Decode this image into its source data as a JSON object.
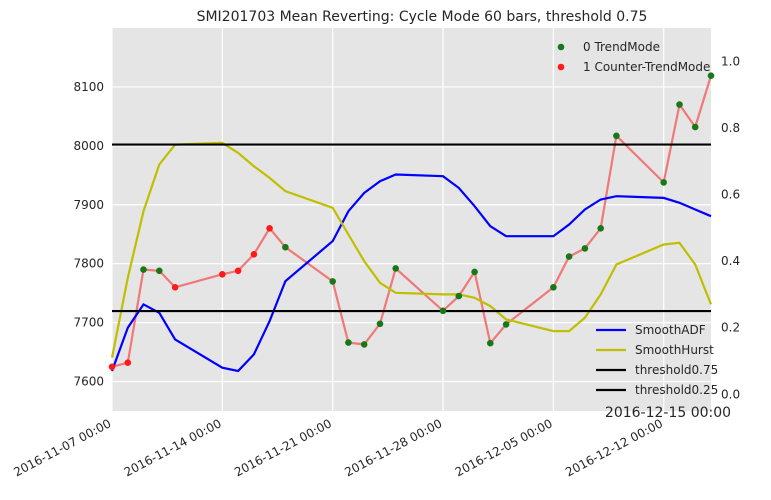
{
  "chart_data": {
    "type": "line",
    "title": "SMI201703 Mean Reverting: Cycle Mode 60 bars, threshold 0.75",
    "corner_label": "2016-12-15 00:00",
    "x": [
      "2016-11-07",
      "2016-11-08",
      "2016-11-09",
      "2016-11-10",
      "2016-11-11",
      "2016-11-14",
      "2016-11-15",
      "2016-11-16",
      "2016-11-17",
      "2016-11-18",
      "2016-11-21",
      "2016-11-22",
      "2016-11-23",
      "2016-11-24",
      "2016-11-25",
      "2016-11-28",
      "2016-11-29",
      "2016-11-30",
      "2016-12-01",
      "2016-12-02",
      "2016-12-05",
      "2016-12-06",
      "2016-12-07",
      "2016-12-08",
      "2016-12-09",
      "2016-12-12",
      "2016-12-13",
      "2016-12-14",
      "2016-12-15"
    ],
    "x_ticks": [
      "2016-11-07 00:00",
      "2016-11-14 00:00",
      "2016-11-21 00:00",
      "2016-11-28 00:00",
      "2016-12-05 00:00",
      "2016-12-12 00:00"
    ],
    "y_left": {
      "ylim": [
        7550,
        8200
      ],
      "ticks": [
        7600,
        7700,
        7800,
        7900,
        8000,
        8100
      ]
    },
    "y_right": {
      "ylim": [
        -0.05,
        1.1
      ],
      "ticks": [
        "0.0",
        "0.2",
        "0.4",
        "0.6",
        "0.8",
        "1.0"
      ]
    },
    "price": {
      "color": "#f07878",
      "values": [
        7625,
        7632,
        7790,
        7788,
        7760,
        7782,
        7788,
        7816,
        7860,
        7828,
        7770,
        7666,
        7663,
        7698,
        7792,
        7720,
        7745,
        7786,
        7665,
        7697,
        7760,
        7812,
        7826,
        7860,
        8017,
        7938,
        8070,
        8032,
        8119
      ]
    },
    "points": [
      {
        "name": "0 TrendMode",
        "color": "#187818",
        "indices": [
          2,
          3,
          9,
          10,
          11,
          12,
          13,
          14,
          15,
          16,
          17,
          18,
          19,
          20,
          21,
          22,
          23,
          24,
          25,
          26,
          27,
          28
        ]
      },
      {
        "name": "1 Counter-TrendMode",
        "color": "#ff1a1a",
        "indices": [
          0,
          1,
          4,
          5,
          6,
          7,
          8
        ]
      }
    ],
    "series": [
      {
        "name": "SmoothADF",
        "color": "#0000ff",
        "axis": "right",
        "values": [
          0.07,
          0.2,
          0.27,
          0.245,
          0.165,
          0.08,
          0.07,
          0.12,
          0.22,
          0.34,
          0.46,
          0.55,
          0.605,
          0.64,
          0.66,
          0.655,
          0.62,
          0.565,
          0.505,
          0.475,
          0.475,
          0.51,
          0.555,
          0.585,
          0.595,
          0.59,
          0.575,
          0.555,
          0.535
        ]
      },
      {
        "name": "SmoothHurst",
        "color": "#bfbf00",
        "axis": "right",
        "values": [
          0.11,
          0.35,
          0.55,
          0.69,
          0.75,
          0.755,
          0.725,
          0.685,
          0.65,
          0.61,
          0.56,
          0.48,
          0.4,
          0.335,
          0.305,
          0.3,
          0.3,
          0.29,
          0.265,
          0.225,
          0.19,
          0.19,
          0.23,
          0.3,
          0.39,
          0.45,
          0.455,
          0.39,
          0.27
        ]
      },
      {
        "name": "threshold0.75",
        "color": "#000000",
        "axis": "right",
        "constant": 0.75
      },
      {
        "name": "threshold0.25",
        "color": "#000000",
        "axis": "right",
        "constant": 0.25
      }
    ]
  }
}
